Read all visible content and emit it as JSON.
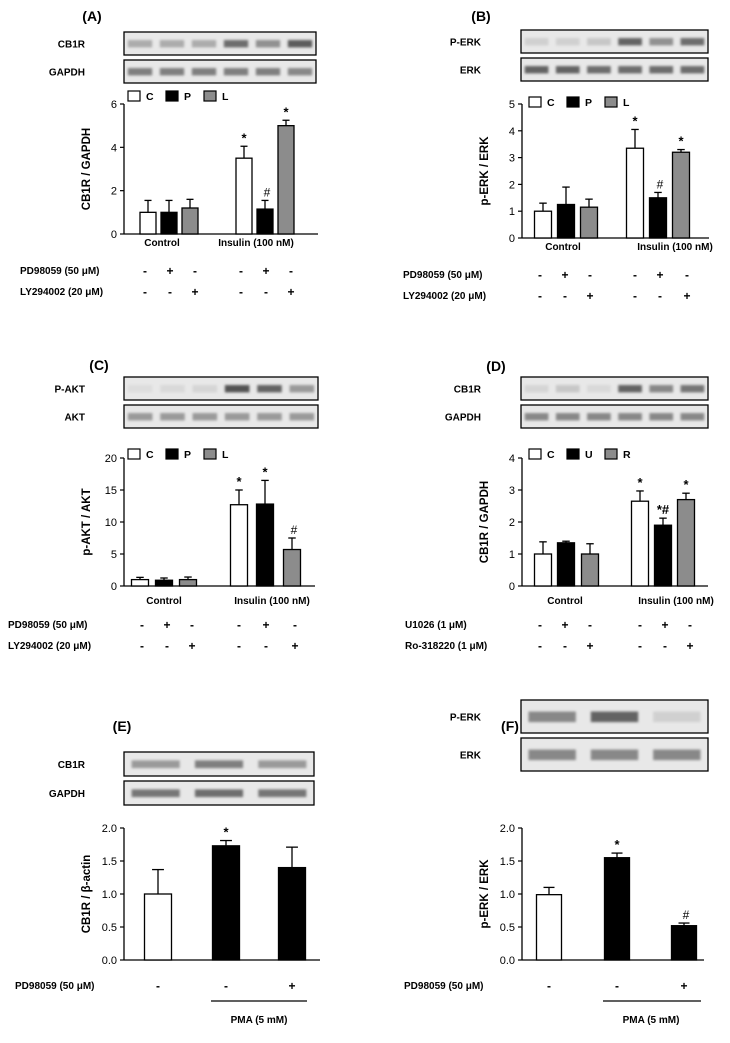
{
  "figure": {
    "panels": [
      {
        "id": "A",
        "label": "(A)",
        "blot_rows": [
          "CB1R",
          "GAPDH"
        ],
        "ylabel": "CB1R / GAPDH",
        "yticks": [
          "0",
          "2",
          "4",
          "6"
        ],
        "groups": [
          "Control",
          "Insulin (100 nM)"
        ],
        "legend": [
          "C",
          "P",
          "L"
        ],
        "treatments": [
          {
            "label": "PD98059 (50 μM)",
            "signs": [
              "-",
              "+",
              "-",
              "-",
              "+",
              "-"
            ]
          },
          {
            "label": "LY294002 (20 μM)",
            "signs": [
              "-",
              "-",
              "+",
              "-",
              "-",
              "+"
            ]
          }
        ]
      },
      {
        "id": "B",
        "label": "(B)",
        "blot_rows": [
          "P-ERK",
          "ERK"
        ],
        "ylabel": "p-ERK / ERK",
        "yticks": [
          "0",
          "1",
          "2",
          "3",
          "4",
          "5"
        ],
        "groups": [
          "Control",
          "Insulin (100 nM)"
        ],
        "legend": [
          "C",
          "P",
          "L"
        ],
        "treatments": [
          {
            "label": "PD98059 (50 μM)",
            "signs": [
              "-",
              "+",
              "-",
              "-",
              "+",
              "-"
            ]
          },
          {
            "label": "LY294002 (20 μM)",
            "signs": [
              "-",
              "-",
              "+",
              "-",
              "-",
              "+"
            ]
          }
        ]
      },
      {
        "id": "C",
        "label": "(C)",
        "blot_rows": [
          "P-AKT",
          "AKT"
        ],
        "ylabel": "p-AKT / AKT",
        "yticks": [
          "0",
          "5",
          "10",
          "15",
          "20"
        ],
        "groups": [
          "Control",
          "Insulin (100 nM)"
        ],
        "legend": [
          "C",
          "P",
          "L"
        ],
        "treatments": [
          {
            "label": "PD98059 (50 μM)",
            "signs": [
              "-",
              "+",
              "-",
              "-",
              "+",
              "-"
            ]
          },
          {
            "label": "LY294002 (20 μM)",
            "signs": [
              "-",
              "-",
              "+",
              "-",
              "-",
              "+"
            ]
          }
        ]
      },
      {
        "id": "D",
        "label": "(D)",
        "blot_rows": [
          "CB1R",
          "GAPDH"
        ],
        "ylabel": "CB1R / GAPDH",
        "yticks": [
          "0",
          "1",
          "2",
          "3",
          "4"
        ],
        "groups": [
          "Control",
          "Insulin (100 nM)"
        ],
        "legend": [
          "C",
          "U",
          "R"
        ],
        "treatments": [
          {
            "label": "U1026 (1 μM)",
            "signs": [
              "-",
              "+",
              "-",
              "-",
              "+",
              "-"
            ]
          },
          {
            "label": "Ro-318220 (1 μM)",
            "signs": [
              "-",
              "-",
              "+",
              "-",
              "-",
              "+"
            ]
          }
        ]
      },
      {
        "id": "E",
        "label": "(E)",
        "blot_rows": [
          "CB1R",
          "GAPDH"
        ],
        "ylabel": "CB1R / β-actin",
        "yticks": [
          "0.0",
          "0.5",
          "1.0",
          "1.5",
          "2.0"
        ],
        "treatments": [
          {
            "label": "PD98059 (50 μM)",
            "signs": [
              "-",
              "-",
              "+"
            ]
          }
        ],
        "group_label": "PMA (5 mM)"
      },
      {
        "id": "F",
        "label": "(F)",
        "blot_rows": [
          "P-ERK",
          "ERK"
        ],
        "ylabel": "p-ERK / ERK",
        "yticks": [
          "0.0",
          "0.5",
          "1.0",
          "1.5",
          "2.0"
        ],
        "treatments": [
          {
            "label": "PD98059 (50 μM)",
            "signs": [
              "-",
              "-",
              "+"
            ]
          }
        ],
        "group_label": "PMA (5 mM)"
      }
    ]
  },
  "chart_data": [
    {
      "panel": "A",
      "type": "bar",
      "ylabel": "CB1R / GAPDH",
      "ylim": [
        0,
        6
      ],
      "categories": [
        "Control",
        "Insulin (100 nM)"
      ],
      "series": [
        {
          "name": "C",
          "color": "#ffffff",
          "values": [
            1.0,
            3.5
          ],
          "errors": [
            0.55,
            0.55
          ],
          "marks": [
            "",
            "*"
          ]
        },
        {
          "name": "P",
          "color": "#000000",
          "values": [
            1.0,
            1.15
          ],
          "errors": [
            0.55,
            0.4
          ],
          "marks": [
            "",
            "#"
          ]
        },
        {
          "name": "L",
          "color": "#8c8c8c",
          "values": [
            1.2,
            5.0
          ],
          "errors": [
            0.4,
            0.25
          ],
          "marks": [
            "",
            "*"
          ]
        }
      ]
    },
    {
      "panel": "B",
      "type": "bar",
      "ylabel": "p-ERK / ERK",
      "ylim": [
        0,
        5
      ],
      "categories": [
        "Control",
        "Insulin (100 nM)"
      ],
      "series": [
        {
          "name": "C",
          "color": "#ffffff",
          "values": [
            1.0,
            3.35
          ],
          "errors": [
            0.3,
            0.7
          ],
          "marks": [
            "",
            "*"
          ]
        },
        {
          "name": "P",
          "color": "#000000",
          "values": [
            1.25,
            1.5
          ],
          "errors": [
            0.65,
            0.2
          ],
          "marks": [
            "",
            "#"
          ]
        },
        {
          "name": "L",
          "color": "#8c8c8c",
          "values": [
            1.15,
            3.2
          ],
          "errors": [
            0.3,
            0.1
          ],
          "marks": [
            "",
            "*"
          ]
        }
      ]
    },
    {
      "panel": "C",
      "type": "bar",
      "ylabel": "p-AKT / AKT",
      "ylim": [
        0,
        20
      ],
      "categories": [
        "Control",
        "Insulin (100 nM)"
      ],
      "series": [
        {
          "name": "C",
          "color": "#ffffff",
          "values": [
            1.0,
            12.7
          ],
          "errors": [
            0.35,
            2.3
          ],
          "marks": [
            "",
            "*"
          ]
        },
        {
          "name": "P",
          "color": "#000000",
          "values": [
            0.9,
            12.8
          ],
          "errors": [
            0.35,
            3.7
          ],
          "marks": [
            "",
            "*"
          ]
        },
        {
          "name": "L",
          "color": "#8c8c8c",
          "values": [
            1.0,
            5.7
          ],
          "errors": [
            0.4,
            1.8
          ],
          "marks": [
            "",
            "#"
          ]
        }
      ]
    },
    {
      "panel": "D",
      "type": "bar",
      "ylabel": "CB1R / GAPDH",
      "ylim": [
        0,
        4
      ],
      "categories": [
        "Control",
        "Insulin (100 nM)"
      ],
      "series": [
        {
          "name": "C",
          "color": "#ffffff",
          "values": [
            1.0,
            2.65
          ],
          "errors": [
            0.38,
            0.32
          ],
          "marks": [
            "",
            "*"
          ]
        },
        {
          "name": "U",
          "color": "#000000",
          "values": [
            1.35,
            1.9
          ],
          "errors": [
            0.05,
            0.22
          ],
          "marks": [
            "",
            "*#"
          ]
        },
        {
          "name": "R",
          "color": "#8c8c8c",
          "values": [
            1.0,
            2.7
          ],
          "errors": [
            0.32,
            0.2
          ],
          "marks": [
            "",
            "*"
          ]
        }
      ]
    },
    {
      "panel": "E",
      "type": "bar",
      "ylabel": "CB1R / β-actin",
      "ylim": [
        0,
        2.0
      ],
      "bars": [
        {
          "value": 1.0,
          "error": 0.37,
          "color": "#ffffff",
          "mark": ""
        },
        {
          "value": 1.73,
          "error": 0.08,
          "color": "#000000",
          "mark": "*"
        },
        {
          "value": 1.4,
          "error": 0.31,
          "color": "#000000",
          "mark": ""
        }
      ]
    },
    {
      "panel": "F",
      "type": "bar",
      "ylabel": "p-ERK / ERK",
      "ylim": [
        0,
        2.0
      ],
      "bars": [
        {
          "value": 0.99,
          "error": 0.11,
          "color": "#ffffff",
          "mark": ""
        },
        {
          "value": 1.55,
          "error": 0.07,
          "color": "#000000",
          "mark": "*"
        },
        {
          "value": 0.52,
          "error": 0.04,
          "color": "#000000",
          "mark": "#"
        }
      ]
    }
  ]
}
